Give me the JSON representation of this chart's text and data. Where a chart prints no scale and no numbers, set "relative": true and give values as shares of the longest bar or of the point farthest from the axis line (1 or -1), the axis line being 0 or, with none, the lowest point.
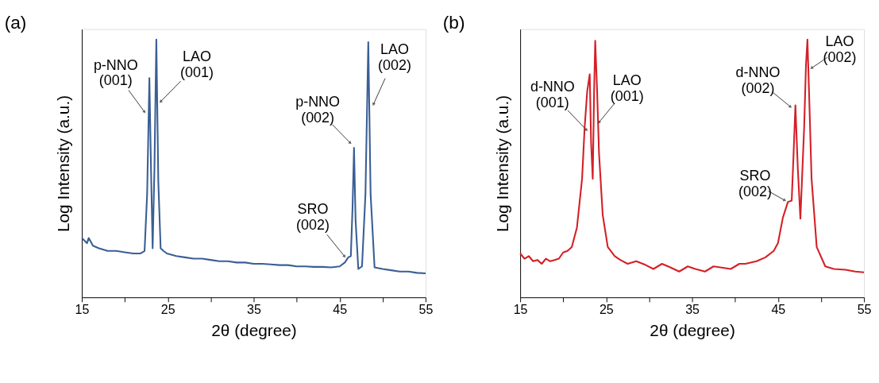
{
  "chart_data": [
    {
      "type": "line",
      "title": "(a)",
      "xlabel": "2θ (degree)",
      "ylabel": "Log Intensity (a.u.)",
      "relative": true,
      "xlim": [
        15,
        55
      ],
      "xticks": [
        15,
        {
          "value": 20,
          "label": null
        },
        25,
        {
          "value": 30,
          "label": null
        },
        35,
        {
          "value": 40,
          "label": null
        },
        45,
        {
          "value": 50,
          "label": null
        },
        55
      ],
      "grid": false,
      "marker": "none",
      "line_style": "solid",
      "series": [
        {
          "color": "#3a5f95",
          "x": [
            15,
            15.3,
            15.6,
            15.8,
            16.3,
            17,
            18,
            19,
            20,
            21,
            21.8,
            22.3,
            22.6,
            22.86,
            23.05,
            23.24,
            23.45,
            23.67,
            23.9,
            24.17,
            24.5,
            24.9,
            26,
            27,
            28,
            29,
            30,
            31,
            32,
            33,
            34,
            35,
            36,
            37,
            38,
            39,
            40,
            41,
            42,
            43,
            44,
            45,
            45.6,
            46.0,
            46.3,
            46.5,
            46.67,
            46.85,
            47.17,
            47.6,
            48.0,
            48.33,
            48.6,
            49.06,
            50,
            51,
            52,
            53,
            54,
            55
          ],
          "values": [
            0.23,
            0.22,
            0.21,
            0.23,
            0.2,
            0.19,
            0.18,
            0.18,
            0.175,
            0.17,
            0.17,
            0.18,
            0.4,
            0.85,
            0.5,
            0.19,
            0.5,
            1.0,
            0.45,
            0.19,
            0.18,
            0.17,
            0.16,
            0.155,
            0.15,
            0.15,
            0.145,
            0.14,
            0.14,
            0.135,
            0.135,
            0.13,
            0.13,
            0.128,
            0.125,
            0.125,
            0.12,
            0.12,
            0.118,
            0.118,
            0.116,
            0.12,
            0.135,
            0.155,
            0.16,
            0.35,
            0.58,
            0.3,
            0.11,
            0.12,
            0.4,
            0.99,
            0.4,
            0.116,
            0.11,
            0.105,
            0.1,
            0.1,
            0.095,
            0.093
          ]
        }
      ],
      "annotations": [
        {
          "text": "p-NNO\n(001)",
          "x": 22.27,
          "y": 0.72
        },
        {
          "text": "LAO\n(001)",
          "x": 24.2,
          "y": 0.76
        },
        {
          "text": "p-NNO\n(002)",
          "x": 46.2,
          "y": 0.6
        },
        {
          "text": "SRO\n(002)",
          "x": 45.54,
          "y": 0.16
        },
        {
          "text": "LAO\n(002)",
          "x": 48.95,
          "y": 0.75
        }
      ]
    },
    {
      "type": "line",
      "title": "(b)",
      "xlabel": "2θ (degree)",
      "ylabel": "Log Intensity (a.u.)",
      "relative": true,
      "xlim": [
        15,
        55
      ],
      "xticks": [
        15,
        {
          "value": 20,
          "label": null
        },
        25,
        {
          "value": 30,
          "label": null
        },
        35,
        {
          "value": 40,
          "label": null
        },
        45,
        {
          "value": 50,
          "label": null
        },
        55
      ],
      "grid": false,
      "marker": "none",
      "line_style": "solid",
      "series": [
        {
          "color": "#d42027",
          "x": [
            15,
            15.5,
            16,
            16.5,
            17,
            17.5,
            18,
            18.5,
            19,
            19.5,
            20,
            20.5,
            21,
            21.6,
            22.2,
            22.5,
            22.8,
            23.09,
            23.25,
            23.44,
            23.6,
            23.73,
            23.95,
            24.17,
            24.6,
            25.19,
            26,
            26.65,
            27.5,
            28.5,
            29.56,
            30.5,
            31.5,
            32.47,
            33.5,
            34.5,
            35.38,
            36.5,
            37.5,
            38.29,
            39.5,
            40.5,
            41.2,
            42.5,
            43.53,
            44.5,
            44.99,
            45.57,
            46.15,
            46.59,
            46.8,
            47.02,
            47.3,
            47.6,
            48.04,
            48.25,
            48.42,
            48.65,
            48.9,
            49.5,
            50.5,
            51.5,
            52.85,
            54,
            55
          ],
          "values": [
            0.17,
            0.15,
            0.16,
            0.14,
            0.145,
            0.13,
            0.15,
            0.14,
            0.145,
            0.15,
            0.174,
            0.18,
            0.195,
            0.27,
            0.46,
            0.66,
            0.8,
            0.865,
            0.6,
            0.46,
            0.8,
            0.995,
            0.8,
            0.56,
            0.32,
            0.195,
            0.16,
            0.145,
            0.13,
            0.14,
            0.126,
            0.11,
            0.13,
            0.116,
            0.1,
            0.12,
            0.11,
            0.1,
            0.12,
            0.116,
            0.11,
            0.13,
            0.13,
            0.14,
            0.155,
            0.18,
            0.21,
            0.31,
            0.37,
            0.375,
            0.55,
            0.745,
            0.5,
            0.305,
            0.66,
            0.9,
            1.0,
            0.75,
            0.46,
            0.195,
            0.12,
            0.11,
            0.107,
            0.1,
            0.097
          ]
        }
      ],
      "annotations": [
        {
          "text": "d-NNO\n(001)",
          "x": 22.69,
          "y": 0.65
        },
        {
          "text": "LAO\n(001)",
          "x": 24.2,
          "y": 0.68
        },
        {
          "text": "d-NNO\n(002)",
          "x": 46.41,
          "y": 0.74
        },
        {
          "text": "SRO\n(002)",
          "x": 45.74,
          "y": 0.377
        },
        {
          "text": "LAO\n(002)",
          "x": 48.94,
          "y": 0.89
        }
      ]
    }
  ]
}
